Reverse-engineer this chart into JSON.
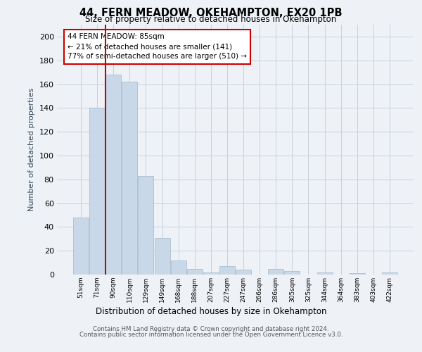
{
  "title1": "44, FERN MEADOW, OKEHAMPTON, EX20 1PB",
  "title2": "Size of property relative to detached houses in Okehampton",
  "xlabel": "Distribution of detached houses by size in Okehampton",
  "ylabel": "Number of detached properties",
  "bar_values": [
    48,
    140,
    168,
    162,
    83,
    31,
    12,
    5,
    2,
    7,
    4,
    0,
    5,
    3,
    0,
    2,
    0,
    1,
    0,
    2
  ],
  "bar_labels": [
    "51sqm",
    "71sqm",
    "90sqm",
    "110sqm",
    "129sqm",
    "149sqm",
    "168sqm",
    "188sqm",
    "207sqm",
    "227sqm",
    "247sqm",
    "266sqm",
    "286sqm",
    "305sqm",
    "325sqm",
    "344sqm",
    "364sqm",
    "383sqm",
    "403sqm",
    "422sqm"
  ],
  "bar_color": "#c8d8e8",
  "bar_edge_color": "#a0b8cc",
  "property_line_color": "#cc0000",
  "annotation_text": "44 FERN MEADOW: 85sqm\n← 21% of detached houses are smaller (141)\n77% of semi-detached houses are larger (510) →",
  "annotation_box_color": "#cc0000",
  "ylim": [
    0,
    210
  ],
  "yticks": [
    0,
    20,
    40,
    60,
    80,
    100,
    120,
    140,
    160,
    180,
    200
  ],
  "footer1": "Contains HM Land Registry data © Crown copyright and database right 2024.",
  "footer2": "Contains public sector information licensed under the Open Government Licence v3.0.",
  "background_color": "#eef2f7",
  "grid_color": "#c8d0dc"
}
